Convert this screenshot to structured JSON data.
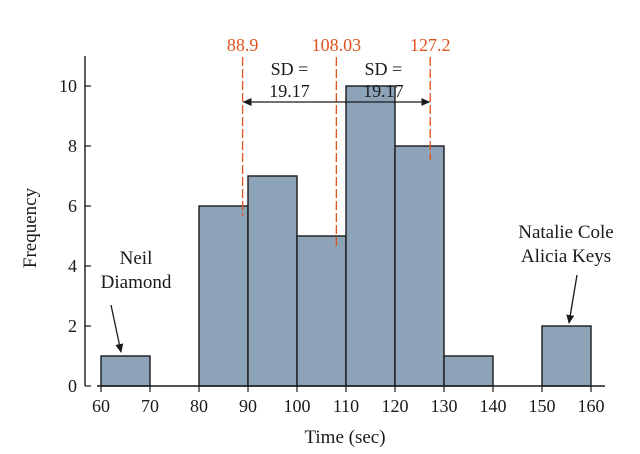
{
  "colors": {
    "bar_fill": "#8da3b8",
    "bar_stroke": "#1a1a1a",
    "axis": "#1a1a1a",
    "reference_line": "#e0521b",
    "text": "#1a1a1a"
  },
  "chart_data": {
    "type": "bar",
    "subtype": "histogram",
    "xlabel": "Time (sec)",
    "ylabel": "Frequency",
    "xlim": [
      60,
      160
    ],
    "ylim": [
      0,
      11
    ],
    "x_ticks": [
      "60",
      "70",
      "80",
      "90",
      "100",
      "110",
      "120",
      "130",
      "140",
      "150",
      "160"
    ],
    "y_ticks": [
      "0",
      "2",
      "4",
      "6",
      "8",
      "10"
    ],
    "bins": [
      {
        "start": 60,
        "end": 70,
        "count": 1
      },
      {
        "start": 70,
        "end": 80,
        "count": 0
      },
      {
        "start": 80,
        "end": 90,
        "count": 6
      },
      {
        "start": 90,
        "end": 100,
        "count": 7
      },
      {
        "start": 100,
        "end": 110,
        "count": 5
      },
      {
        "start": 110,
        "end": 120,
        "count": 10
      },
      {
        "start": 120,
        "end": 130,
        "count": 8
      },
      {
        "start": 130,
        "end": 140,
        "count": 1
      },
      {
        "start": 140,
        "end": 150,
        "count": 0
      },
      {
        "start": 150,
        "end": 160,
        "count": 2
      }
    ],
    "reference_lines": [
      {
        "x": 88.9,
        "label": "88.9"
      },
      {
        "x": 108.03,
        "label": "108.03"
      },
      {
        "x": 127.2,
        "label": "127.2"
      }
    ],
    "sd_labels": [
      {
        "line1": "SD =",
        "line2": "19.17"
      },
      {
        "line1": "SD =",
        "line2": "19.17"
      }
    ],
    "annotations": [
      {
        "lines": [
          "Neil",
          "Diamond"
        ],
        "points_to": "60-70 bin"
      },
      {
        "lines": [
          "Natalie Cole",
          "Alicia Keys"
        ],
        "points_to": "150-160 bin"
      }
    ],
    "grid": false,
    "legend": "none"
  }
}
